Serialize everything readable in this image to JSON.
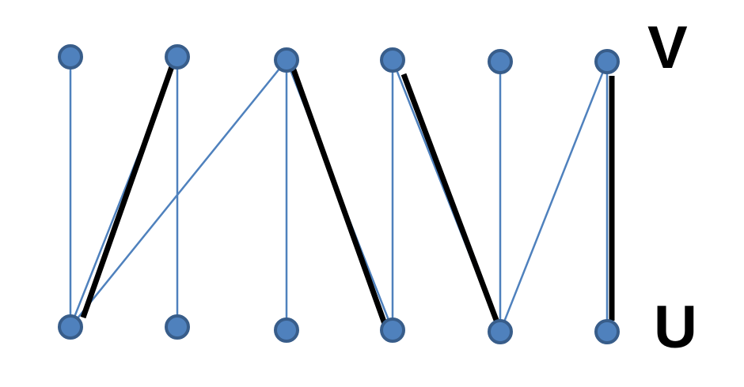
{
  "diagram": {
    "type": "bipartite-graph-matching",
    "labels": {
      "top_set": "V",
      "bottom_set": "U"
    },
    "colors": {
      "node_fill": "#4f81bd",
      "node_stroke": "#385d8a",
      "edge": "#4f81bd",
      "matching_edge": "#000000",
      "label": "#000000"
    },
    "top_nodes": [
      "v1",
      "v2",
      "v3",
      "v4",
      "v5",
      "v6"
    ],
    "bottom_nodes": [
      "u1",
      "u2",
      "u3",
      "u4",
      "u5",
      "u6"
    ],
    "edges": [
      {
        "from": "v1",
        "to": "u1"
      },
      {
        "from": "v2",
        "to": "u1"
      },
      {
        "from": "v2",
        "to": "u2"
      },
      {
        "from": "v3",
        "to": "u1"
      },
      {
        "from": "v3",
        "to": "u3"
      },
      {
        "from": "v3",
        "to": "u4"
      },
      {
        "from": "v4",
        "to": "u4"
      },
      {
        "from": "v4",
        "to": "u5"
      },
      {
        "from": "v5",
        "to": "u5"
      },
      {
        "from": "v6",
        "to": "u5"
      },
      {
        "from": "v6",
        "to": "u6"
      }
    ],
    "matching": [
      {
        "from": "v2",
        "to": "u1"
      },
      {
        "from": "v3",
        "to": "u4"
      },
      {
        "from": "v4",
        "to": "u5"
      },
      {
        "from": "v6",
        "to": "u6"
      }
    ]
  }
}
